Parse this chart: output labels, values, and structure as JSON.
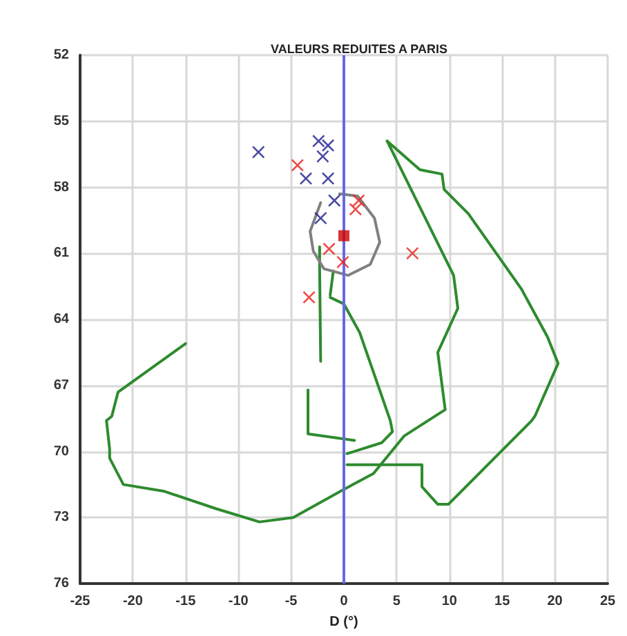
{
  "chart_data": {
    "type": "scatter",
    "title": "VALEURS REDUITES A PARIS",
    "xlabel": "D (°)",
    "xlim": [
      -25,
      25
    ],
    "xticks": [
      -25,
      -20,
      -15,
      -10,
      -5,
      0,
      5,
      10,
      15,
      20,
      25
    ],
    "ylim": [
      76,
      52
    ],
    "yticks": [
      52,
      55,
      58,
      61,
      64,
      67,
      70,
      73,
      76
    ],
    "grid": true,
    "legend": false,
    "ref_lines": [
      {
        "axis": "x",
        "value": 0,
        "color": "#6a6ae0"
      }
    ],
    "series": [
      {
        "type": "line",
        "marker": "none",
        "color": "#2e8b2e",
        "x": [
          4.1,
          7.2,
          9.3,
          9.5,
          11.8,
          16.8,
          19.3,
          20.3,
          18.1,
          17.8,
          9.9,
          8.9,
          7.4,
          7.4,
          2.8,
          0.3
        ],
        "values": [
          55.9,
          57.2,
          57.4,
          58.1,
          59.2,
          62.6,
          64.8,
          66.0,
          68.4,
          68.6,
          72.4,
          72.4,
          71.6,
          70.6,
          70.6,
          70.6
        ]
      },
      {
        "type": "line",
        "marker": "none",
        "color": "#2e8b2e",
        "x": [
          4.1,
          10.4,
          10.8,
          8.9,
          9.6,
          5.7,
          2.8,
          -0.3,
          -4.8,
          -8.0,
          -12.1,
          -17.1,
          -20.9,
          -22.2,
          -22.2,
          -22.5,
          -22.0,
          -21.4,
          -15.0
        ],
        "values": [
          55.9,
          62.0,
          63.5,
          65.5,
          68.1,
          69.3,
          71.0,
          71.8,
          73.0,
          73.2,
          72.6,
          71.8,
          71.5,
          70.3,
          69.9,
          68.6,
          68.4,
          67.3,
          65.1
        ]
      },
      {
        "type": "line",
        "marker": "none",
        "color": "#2e8b2e",
        "x": [
          -1.3,
          0,
          1.5,
          4.4,
          4.6,
          3.6,
          0.3
        ],
        "values": [
          63.0,
          63.3,
          64.6,
          68.6,
          69.1,
          69.6,
          70.1
        ]
      },
      {
        "type": "line",
        "marker": "none",
        "color": "#2e8b2e",
        "x": [
          -2.3,
          -2.3,
          -2.2
        ],
        "values": [
          60.7,
          61.6,
          65.9
        ]
      },
      {
        "type": "line",
        "marker": "none",
        "color": "#2e8b2e",
        "x": [
          -3.4,
          -3.4,
          1.0
        ],
        "values": [
          67.2,
          69.2,
          69.5
        ]
      },
      {
        "type": "line",
        "marker": "none",
        "color": "#2e8b2e",
        "x": [
          -1.0,
          -1.3
        ],
        "values": [
          61.8,
          62.9
        ]
      },
      {
        "type": "line",
        "marker": "none",
        "color": "#808080",
        "x": [
          -0.4,
          1.3,
          2.9,
          3.4,
          2.5,
          0.4,
          -1.9,
          -2.9,
          -3.2,
          -2.2
        ],
        "values": [
          58.3,
          58.4,
          59.4,
          60.5,
          61.5,
          62.0,
          61.7,
          60.9,
          60.0,
          58.7
        ]
      },
      {
        "type": "scatter",
        "marker": "cross",
        "color": "#1c1c8c",
        "x": [
          -8.1,
          -2.4,
          -1.5,
          -2.0,
          -3.6,
          -1.5,
          -0.9,
          -2.2
        ],
        "values": [
          56.4,
          55.9,
          56.1,
          56.6,
          57.6,
          57.6,
          58.6,
          59.4
        ]
      },
      {
        "type": "scatter",
        "marker": "cross",
        "color": "#e8201c",
        "x": [
          -4.4,
          1.4,
          1.1,
          -1.4,
          -0.1,
          6.5,
          -3.3
        ],
        "values": [
          57.0,
          58.6,
          59.0,
          60.8,
          61.4,
          61.0,
          63.0
        ]
      },
      {
        "type": "scatter",
        "marker": "square",
        "color": "#d00000",
        "x": [
          0
        ],
        "values": [
          60.2
        ]
      }
    ]
  }
}
